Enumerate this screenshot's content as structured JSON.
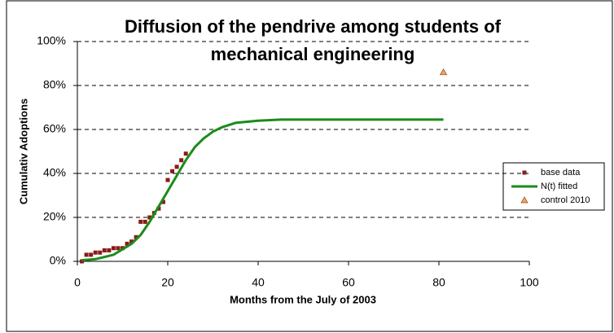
{
  "chart_data": {
    "type": "scatter",
    "title": [
      "Diffusion of the pendrive among students of",
      "mechanical engineering"
    ],
    "x_label": "Months from the July of 2003",
    "y_label": "Cumulativ Adoptions",
    "xlim": [
      0,
      100
    ],
    "xticks": [
      0,
      20,
      40,
      60,
      80,
      100
    ],
    "ylim": [
      0,
      100
    ],
    "yticks": [
      {
        "value": 0,
        "label": "0%"
      },
      {
        "value": 20,
        "label": "20%"
      },
      {
        "value": 40,
        "label": "40%"
      },
      {
        "value": 60,
        "label": "60%"
      },
      {
        "value": 80,
        "label": "80%"
      },
      {
        "value": 100,
        "label": "100%"
      }
    ],
    "grid": true,
    "legend": "right",
    "series": [
      {
        "name": "base data",
        "color": "#8b1a1a",
        "marker": "square",
        "x": [
          1,
          2,
          3,
          4,
          5,
          6,
          7,
          8,
          9,
          10,
          11,
          12,
          13,
          14,
          15,
          16,
          17,
          18,
          19,
          20,
          21,
          22,
          23,
          24
        ],
        "values": [
          0,
          3,
          3,
          4,
          4,
          5,
          5,
          6,
          6,
          6,
          8,
          9,
          11,
          18,
          18,
          20,
          22,
          24,
          27,
          37,
          41,
          43,
          46,
          49
        ]
      },
      {
        "name": "N(t) fitted",
        "color": "#1a8c1a",
        "marker": "line",
        "x": [
          1,
          4,
          8,
          12,
          14,
          16,
          18,
          20,
          22,
          24,
          26,
          28,
          30,
          32,
          35,
          40,
          45,
          60,
          81
        ],
        "values": [
          0.5,
          1,
          3,
          8,
          12,
          18,
          25,
          32,
          39,
          46,
          52,
          56,
          59,
          61,
          63,
          64,
          64.5,
          64.5,
          64.5
        ]
      },
      {
        "name": "control 2010",
        "color": "#f4a460",
        "marker": "triangle",
        "x": [
          81
        ],
        "values": [
          86
        ]
      }
    ]
  }
}
